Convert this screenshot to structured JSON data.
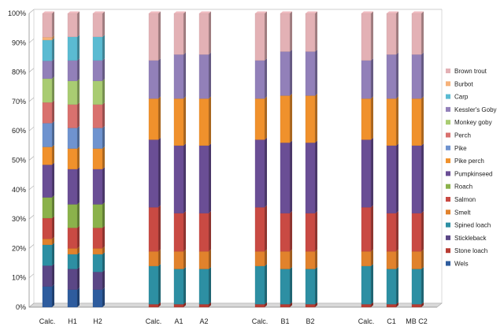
{
  "chart_data": {
    "type": "bar",
    "stacked": "percent",
    "grid": true,
    "legend_position": "right",
    "ylim": [
      0,
      100
    ],
    "yticks": [
      "0%",
      "10%",
      "20%",
      "30%",
      "40%",
      "50%",
      "60%",
      "70%",
      "80%",
      "90%",
      "100%"
    ],
    "categories": [
      "Calc.",
      "H1",
      "H2",
      "Calc.",
      "A1",
      "A2",
      "Calc.",
      "B1",
      "B2",
      "Calc.",
      "C1",
      "MB C2"
    ],
    "groups": [
      [
        0,
        1,
        2
      ],
      [
        3,
        4,
        5
      ],
      [
        6,
        7,
        8
      ],
      [
        9,
        10,
        11
      ]
    ],
    "series": [
      {
        "name": "Wels",
        "color": "#2e5c9e",
        "values": [
          7,
          6,
          6,
          0,
          0,
          0,
          0,
          0,
          0,
          0,
          0,
          0
        ]
      },
      {
        "name": "Stone loach",
        "color": "#b83c33",
        "values": [
          0,
          0,
          0,
          1,
          1,
          1,
          1,
          1,
          1,
          1,
          1,
          1
        ]
      },
      {
        "name": "Stickleback",
        "color": "#5b4786",
        "values": [
          7,
          7,
          6,
          0,
          0,
          0,
          0,
          0,
          0,
          0,
          0,
          0
        ]
      },
      {
        "name": "Spined loach",
        "color": "#2d8fa3",
        "values": [
          7,
          5,
          6,
          13,
          12,
          12,
          13,
          12,
          12,
          13,
          12,
          12
        ]
      },
      {
        "name": "Smelt",
        "color": "#e1822c",
        "values": [
          2,
          2,
          2,
          5,
          6,
          6,
          5,
          6,
          6,
          5,
          6,
          6
        ]
      },
      {
        "name": "Salmon",
        "color": "#c94a43",
        "values": [
          7,
          7,
          7,
          15,
          13,
          13,
          15,
          13,
          13,
          15,
          13,
          13
        ]
      },
      {
        "name": "Roach",
        "color": "#8bb24b",
        "values": [
          7,
          8,
          8,
          0,
          0,
          0,
          0,
          0,
          0,
          0,
          0,
          0
        ]
      },
      {
        "name": "Pumpkinseed",
        "color": "#6a4e95",
        "values": [
          11,
          12,
          12,
          23,
          23,
          23,
          23,
          24,
          24,
          23,
          23,
          23
        ]
      },
      {
        "name": "Pike perch",
        "color": "#f0912c",
        "values": [
          6,
          7,
          7,
          14,
          16,
          16,
          14,
          16,
          16,
          14,
          16,
          16
        ]
      },
      {
        "name": "Pike",
        "color": "#6f93cf",
        "values": [
          8,
          7,
          7,
          0,
          0,
          0,
          0,
          0,
          0,
          0,
          0,
          0
        ]
      },
      {
        "name": "Perch",
        "color": "#d9716e",
        "values": [
          7,
          8,
          8,
          0,
          0,
          0,
          0,
          0,
          0,
          0,
          0,
          0
        ]
      },
      {
        "name": "Monkey goby",
        "color": "#a9cc72",
        "values": [
          8,
          8,
          8,
          0,
          0,
          0,
          0,
          0,
          0,
          0,
          0,
          0
        ]
      },
      {
        "name": "Kessler's Goby",
        "color": "#9280b9",
        "values": [
          6,
          7,
          7,
          13,
          15,
          15,
          13,
          15,
          15,
          13,
          15,
          15
        ]
      },
      {
        "name": "Carp",
        "color": "#5bbbd2",
        "values": [
          7,
          8,
          8,
          0,
          0,
          0,
          0,
          0,
          0,
          0,
          0,
          0
        ]
      },
      {
        "name": "Burbot",
        "color": "#f6b27a",
        "values": [
          1,
          0,
          0,
          0,
          0,
          0,
          0,
          0,
          0,
          0,
          0,
          0
        ]
      },
      {
        "name": "Brown trout",
        "color": "#e3b1b5",
        "values": [
          8,
          8,
          8,
          16,
          14,
          14,
          16,
          13,
          13,
          16,
          14,
          14
        ]
      }
    ]
  }
}
